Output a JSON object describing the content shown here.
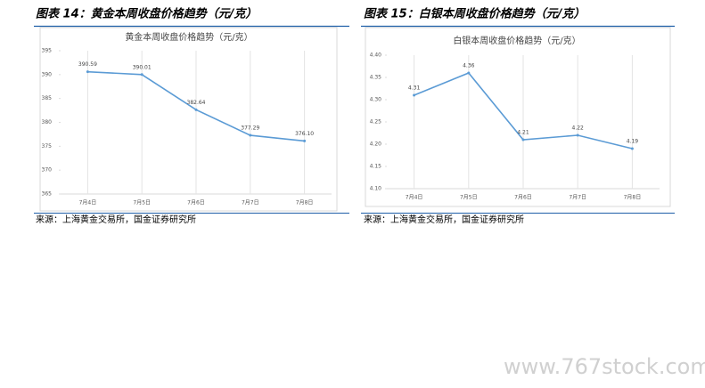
{
  "captions": [
    "图表 14：黄金本周收盘价格趋势（元/克）",
    "图表 15：白银本周收盘价格趋势（元/克）"
  ],
  "sources": [
    "来源：上海黄金交易所，国金证券研究所",
    "来源：上海黄金交易所，国金证券研究所"
  ],
  "watermark": "www.767stock.com",
  "chart_data": [
    {
      "type": "line",
      "title": "黄金本周收盘价格趋势（元/克）",
      "categories": [
        "7月4日",
        "7月5日",
        "7月6日",
        "7月7日",
        "7月8日"
      ],
      "values": [
        390.59,
        390.01,
        382.64,
        377.29,
        376.1
      ],
      "value_labels": [
        "390.59",
        "390.01",
        "382.64",
        "377.29",
        "376.10"
      ],
      "color": "#5b9bd5",
      "ylim": [
        365,
        395
      ],
      "yticks": [
        365,
        370,
        375,
        380,
        385,
        390,
        395
      ],
      "grid": true
    },
    {
      "type": "line",
      "title": "白银本周收盘价格趋势（元/克）",
      "categories": [
        "7月4日",
        "7月5日",
        "7月6日",
        "7月7日",
        "7月8日"
      ],
      "values": [
        4.31,
        4.36,
        4.21,
        4.22,
        4.19
      ],
      "color": "#5b9bd5",
      "ylim": [
        4.1,
        4.4
      ],
      "yticks": [
        {
          "value": 4.1,
          "label": "4.10"
        },
        4.15,
        {
          "value": 4.2,
          "label": "4.20"
        },
        4.25,
        {
          "value": 4.3,
          "label": "4.30"
        },
        4.35,
        {
          "value": 4.4,
          "label": "4.40"
        }
      ],
      "grid": true
    }
  ]
}
